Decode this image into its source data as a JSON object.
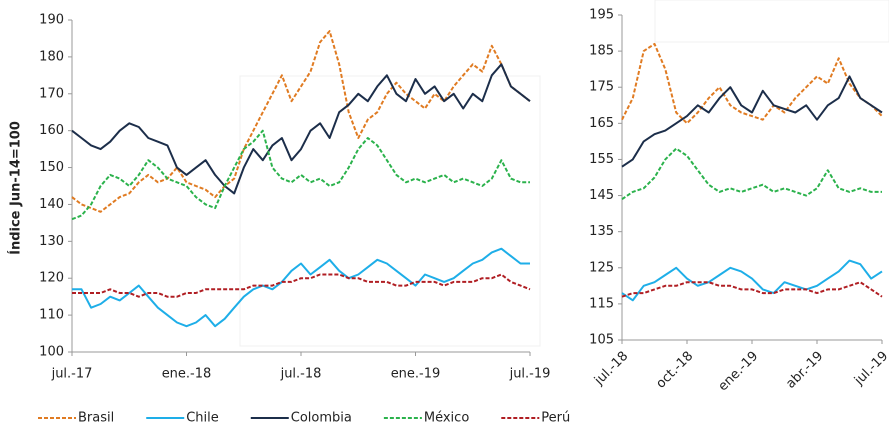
{
  "chart_data": [
    {
      "type": "line",
      "y_label": "Índice Jun-14=100",
      "x": [
        0,
        0.5,
        1,
        1.5,
        2,
        2.5,
        3,
        3.5,
        4,
        4.5,
        5,
        5.5,
        6,
        6.5,
        7,
        7.5,
        8,
        8.5,
        9,
        9.5,
        10,
        10.5,
        11,
        11.5,
        12,
        12.5,
        13,
        13.5,
        14,
        14.5,
        15,
        15.5,
        16,
        16.5,
        17,
        17.5,
        18,
        18.5,
        19,
        19.5,
        20,
        20.5,
        21,
        21.5,
        22,
        22.5,
        23,
        23.5,
        24
      ],
      "xlim": [
        0,
        24
      ],
      "xticks": [
        {
          "value": 0,
          "label": "jul.-17"
        },
        {
          "value": 6,
          "label": "ene.-18"
        },
        {
          "value": 12,
          "label": "jul.-18"
        },
        {
          "value": 18,
          "label": "ene.-19"
        },
        {
          "value": 24,
          "label": "jul.-19"
        }
      ],
      "ylim": [
        100,
        190
      ],
      "yticks": [
        100,
        110,
        120,
        130,
        140,
        150,
        160,
        170,
        180,
        190
      ],
      "series": [
        {
          "name": "Brasil",
          "color": "#e07b22",
          "dashed": true,
          "values": [
            142,
            140,
            139,
            138,
            140,
            142,
            143,
            146,
            148,
            146,
            147,
            150,
            146,
            145,
            144,
            142,
            145,
            147,
            155,
            160,
            165,
            170,
            175,
            168,
            172,
            176,
            184,
            187,
            178,
            165,
            158,
            163,
            165,
            170,
            173,
            170,
            168,
            166,
            170,
            168,
            172,
            175,
            178,
            176,
            183,
            178,
            172,
            170,
            168
          ]
        },
        {
          "name": "Chile",
          "color": "#1eaee8",
          "dashed": false,
          "values": [
            117,
            117,
            112,
            113,
            115,
            114,
            116,
            118,
            115,
            112,
            110,
            108,
            107,
            108,
            110,
            107,
            109,
            112,
            115,
            117,
            118,
            117,
            119,
            122,
            124,
            121,
            123,
            125,
            122,
            120,
            121,
            123,
            125,
            124,
            122,
            120,
            118,
            121,
            120,
            119,
            120,
            122,
            124,
            125,
            127,
            128,
            126,
            124,
            124
          ]
        },
        {
          "name": "Colombia",
          "color": "#1c2e4a",
          "dashed": false,
          "values": [
            160,
            158,
            156,
            155,
            157,
            160,
            162,
            161,
            158,
            157,
            156,
            150,
            148,
            150,
            152,
            148,
            145,
            143,
            150,
            155,
            152,
            156,
            158,
            152,
            155,
            160,
            162,
            158,
            165,
            167,
            170,
            168,
            172,
            175,
            170,
            168,
            174,
            170,
            172,
            168,
            170,
            166,
            170,
            168,
            175,
            178,
            172,
            170,
            168
          ]
        },
        {
          "name": "México",
          "color": "#2bb24c",
          "dashed": true,
          "values": [
            136,
            137,
            140,
            145,
            148,
            147,
            145,
            148,
            152,
            150,
            147,
            146,
            145,
            142,
            140,
            139,
            145,
            150,
            155,
            157,
            160,
            150,
            147,
            146,
            148,
            146,
            147,
            145,
            146,
            150,
            155,
            158,
            156,
            152,
            148,
            146,
            147,
            146,
            147,
            148,
            146,
            147,
            146,
            145,
            147,
            152,
            147,
            146,
            146
          ]
        },
        {
          "name": "Perú",
          "color": "#b01e23",
          "dashed": true,
          "values": [
            116,
            116,
            116,
            116,
            117,
            116,
            116,
            115,
            116,
            116,
            115,
            115,
            116,
            116,
            117,
            117,
            117,
            117,
            117,
            118,
            118,
            118,
            119,
            119,
            120,
            120,
            121,
            121,
            121,
            120,
            120,
            119,
            119,
            119,
            118,
            118,
            119,
            119,
            119,
            118,
            119,
            119,
            119,
            120,
            120,
            121,
            119,
            118,
            117
          ]
        }
      ]
    },
    {
      "type": "line",
      "x": [
        0,
        0.5,
        1,
        1.5,
        2,
        2.5,
        3,
        3.5,
        4,
        4.5,
        5,
        5.5,
        6,
        6.5,
        7,
        7.5,
        8,
        8.5,
        9,
        9.5,
        10,
        10.5,
        11,
        11.5,
        12
      ],
      "xlim": [
        0,
        12
      ],
      "xticks": [
        {
          "value": 0,
          "label": "jul.-18"
        },
        {
          "value": 3,
          "label": "oct.-18"
        },
        {
          "value": 6,
          "label": "ene.-19"
        },
        {
          "value": 9,
          "label": "abr.-19"
        },
        {
          "value": 12,
          "label": "jul.-19"
        }
      ],
      "ylim": [
        105,
        195
      ],
      "yticks": [
        105,
        115,
        125,
        135,
        145,
        155,
        165,
        175,
        185,
        195
      ],
      "series": [
        {
          "color": "#e07b22",
          "dashed": true,
          "values": [
            166,
            172,
            185,
            187,
            180,
            168,
            165,
            168,
            172,
            175,
            170,
            168,
            167,
            166,
            170,
            168,
            172,
            175,
            178,
            176,
            183,
            176,
            172,
            170,
            167
          ]
        },
        {
          "color": "#1eaee8",
          "dashed": false,
          "values": [
            118,
            116,
            120,
            121,
            123,
            125,
            122,
            120,
            121,
            123,
            125,
            124,
            122,
            119,
            118,
            121,
            120,
            119,
            120,
            122,
            124,
            127,
            126,
            122,
            124
          ]
        },
        {
          "color": "#1c2e4a",
          "dashed": false,
          "values": [
            153,
            155,
            160,
            162,
            163,
            165,
            167,
            170,
            168,
            172,
            175,
            170,
            168,
            174,
            170,
            169,
            168,
            170,
            166,
            170,
            172,
            178,
            172,
            170,
            168
          ]
        },
        {
          "color": "#2bb24c",
          "dashed": true,
          "values": [
            144,
            146,
            147,
            150,
            155,
            158,
            156,
            152,
            148,
            146,
            147,
            146,
            147,
            148,
            146,
            147,
            146,
            145,
            147,
            152,
            147,
            146,
            147,
            146,
            146
          ]
        },
        {
          "color": "#b01e23",
          "dashed": true,
          "values": [
            117,
            118,
            118,
            119,
            120,
            120,
            121,
            121,
            121,
            120,
            120,
            119,
            119,
            118,
            118,
            119,
            119,
            119,
            118,
            119,
            119,
            120,
            121,
            119,
            117
          ]
        }
      ]
    }
  ]
}
